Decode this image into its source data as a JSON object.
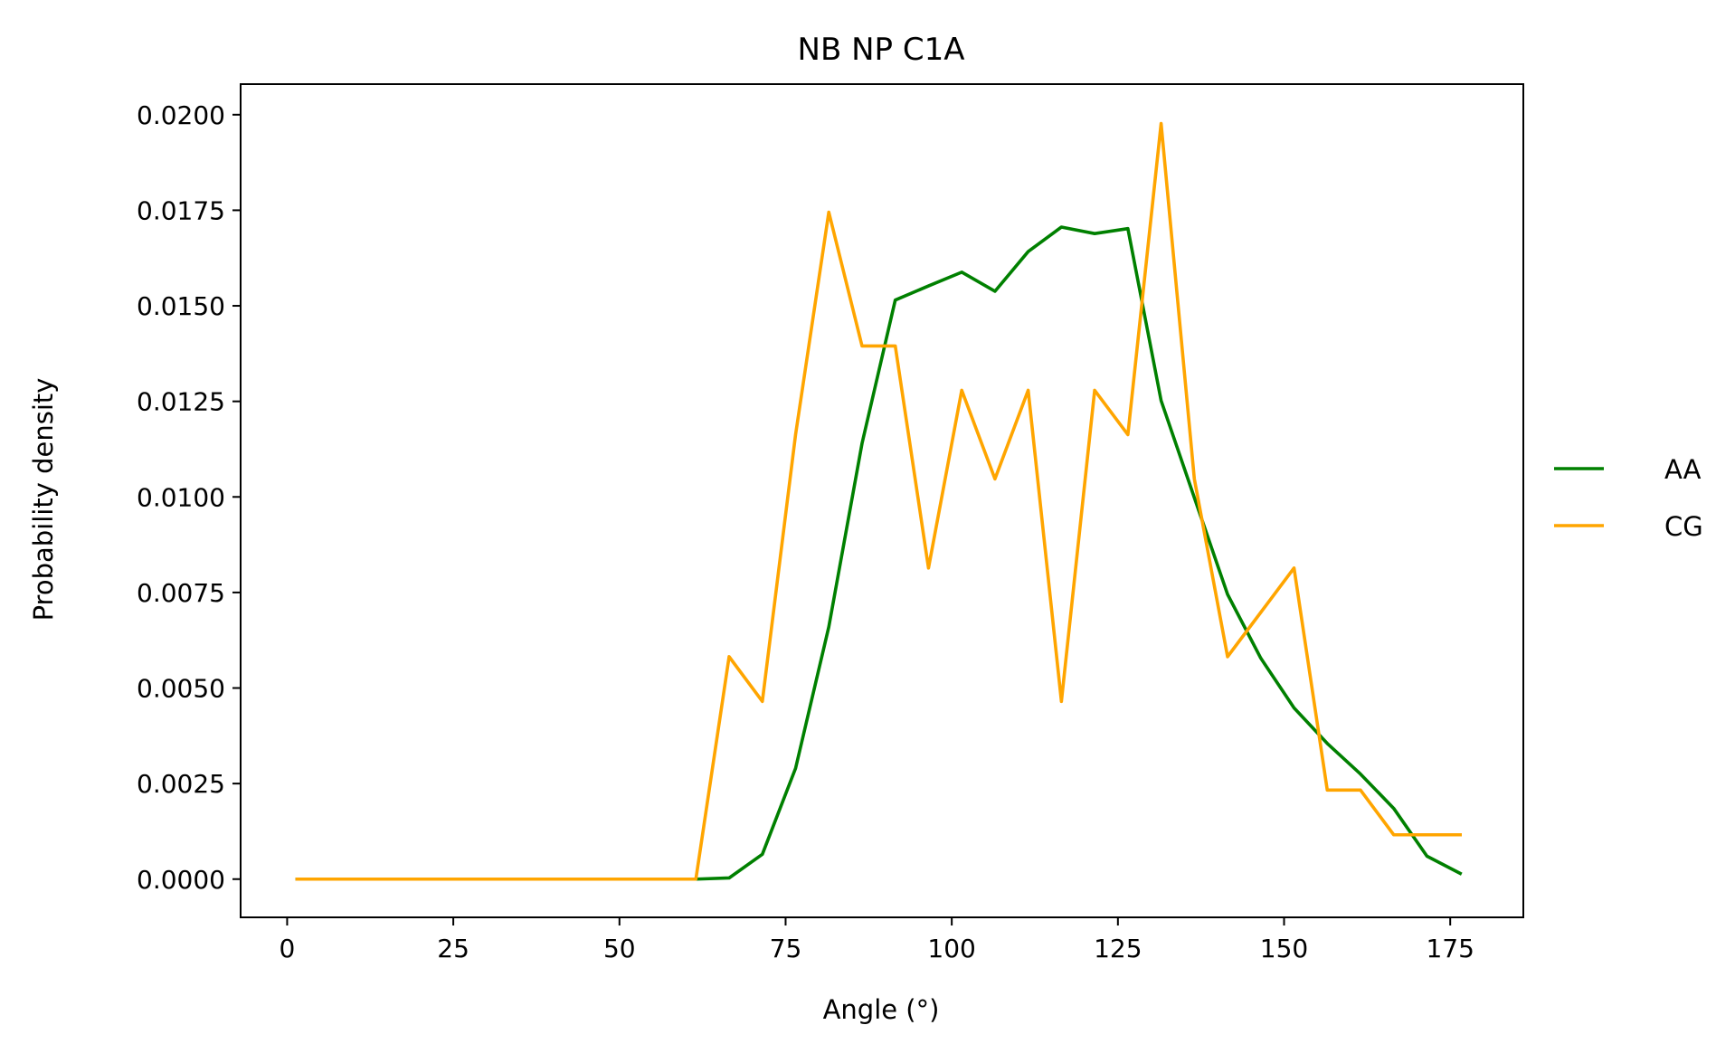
{
  "chart_data": {
    "type": "line",
    "title": "NB NP C1A",
    "xlabel": "Angle (°)",
    "ylabel": "Probability density",
    "xlim": [
      -7,
      186
    ],
    "ylim": [
      -0.001,
      0.0208
    ],
    "xticks": [
      0,
      25,
      50,
      75,
      100,
      125,
      150,
      175
    ],
    "xtick_labels": [
      "0",
      "25",
      "50",
      "75",
      "100",
      "125",
      "150",
      "175"
    ],
    "yticks": [
      0,
      0.0025,
      0.005,
      0.0075,
      0.01,
      0.0125,
      0.015,
      0.0175,
      0.02
    ],
    "ytick_labels": [
      "0.0000",
      "0.0025",
      "0.0050",
      "0.0075",
      "0.0100",
      "0.0125",
      "0.0150",
      "0.0175",
      "0.0200"
    ],
    "grid": false,
    "legend_position": "outside-right",
    "x": [
      1.5,
      6.5,
      11.5,
      16.5,
      21.5,
      26.5,
      31.5,
      36.5,
      41.5,
      46.5,
      51.5,
      56.5,
      61.5,
      66.5,
      71.5,
      76.5,
      81.5,
      86.5,
      91.5,
      96.5,
      101.5,
      106.5,
      111.5,
      116.5,
      121.5,
      126.5,
      131.5,
      136.5,
      141.5,
      146.5,
      151.5,
      156.5,
      161.5,
      166.5,
      171.5,
      176.5
    ],
    "series": [
      {
        "name": "AA",
        "color": "#008000",
        "values": [
          0,
          0,
          0,
          0,
          0,
          0,
          0,
          0,
          0,
          0,
          0,
          0,
          0,
          3e-05,
          0.00065,
          0.0029,
          0.0066,
          0.0114,
          0.01515,
          0.01552,
          0.01588,
          0.01538,
          0.01642,
          0.01706,
          0.01689,
          0.01702,
          0.01252,
          0.00998,
          0.00745,
          0.00578,
          0.00448,
          0.00355,
          0.00275,
          0.00185,
          0.0006,
          0.00015
        ]
      },
      {
        "name": "CG",
        "color": "#FFA500",
        "values": [
          0,
          0,
          0,
          0,
          0,
          0,
          0,
          0,
          0,
          0,
          0,
          0,
          0,
          0.00582,
          0.00465,
          0.01163,
          0.01745,
          0.01395,
          0.01395,
          0.00814,
          0.01279,
          0.01047,
          0.01279,
          0.00465,
          0.01279,
          0.01163,
          0.01977,
          0.01047,
          0.00582,
          0.00698,
          0.00814,
          0.00233,
          0.00233,
          0.00116,
          0.00116,
          0.00116
        ]
      }
    ]
  }
}
